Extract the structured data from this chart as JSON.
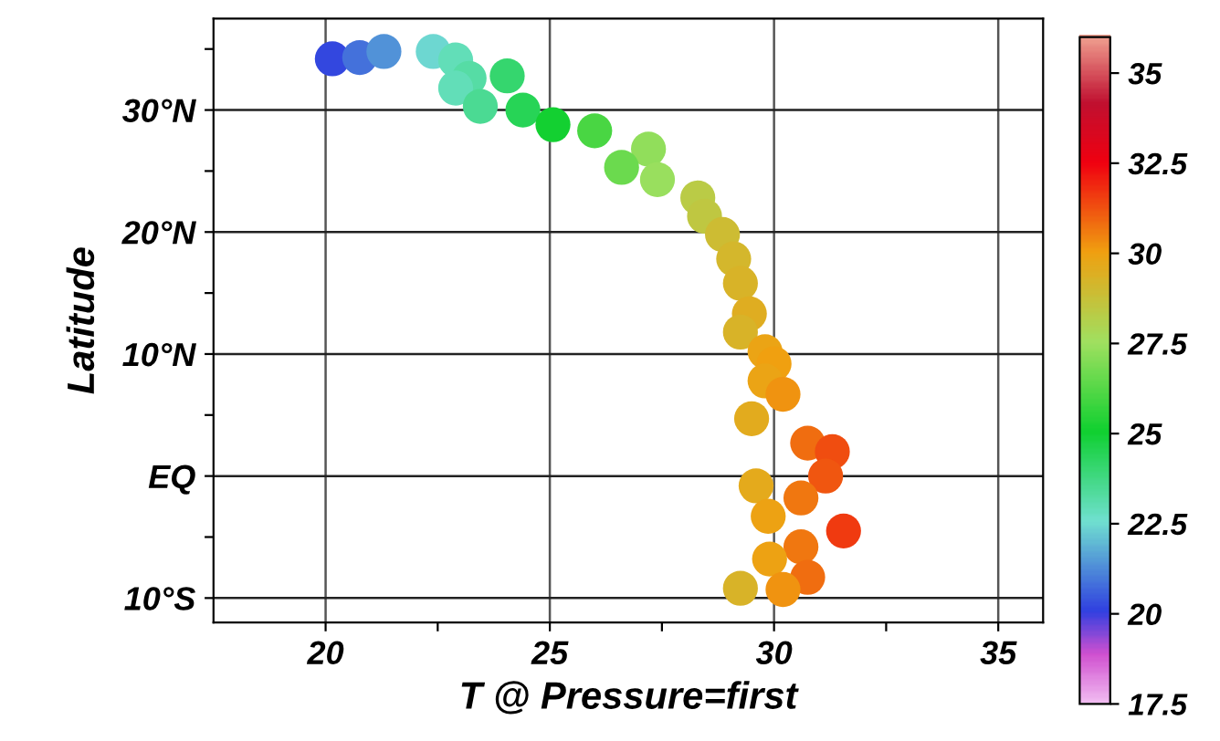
{
  "chart_data": {
    "type": "scatter",
    "xlabel": "T @ Pressure=first",
    "ylabel": "Latitude",
    "xlim": [
      17.5,
      36
    ],
    "ylim": [
      -12,
      37.5
    ],
    "xticks": [
      20,
      {
        "value": 22.5,
        "label": null
      },
      25,
      {
        "value": 27.5,
        "label": null
      },
      30,
      {
        "value": 32.5,
        "label": null
      },
      35
    ],
    "yticks": [
      {
        "value": -10,
        "label": "10°S"
      },
      {
        "value": -5,
        "label": null
      },
      {
        "value": 0,
        "label": "EQ"
      },
      {
        "value": 5,
        "label": null
      },
      {
        "value": 10,
        "label": "10°N"
      },
      {
        "value": 15,
        "label": null
      },
      {
        "value": 20,
        "label": "20°N"
      },
      {
        "value": 25,
        "label": null
      },
      {
        "value": 30,
        "label": "30°N"
      },
      {
        "value": 35,
        "label": null
      }
    ],
    "x": [
      20.15,
      20.76,
      21.3,
      22.4,
      22.9,
      24.05,
      23.2,
      22.9,
      23.45,
      24.4,
      25.07,
      26.0,
      27.2,
      26.6,
      27.4,
      28.3,
      28.45,
      28.85,
      29.1,
      29.25,
      29.45,
      29.25,
      29.8,
      30.0,
      29.8,
      30.2,
      29.5,
      30.75,
      31.3,
      31.15,
      29.6,
      30.6,
      29.87,
      31.55,
      30.6,
      29.9,
      30.75,
      29.25,
      30.2
    ],
    "values": [
      34.2,
      34.3,
      34.8,
      34.8,
      34.1,
      32.8,
      32.6,
      31.8,
      30.3,
      30.0,
      28.8,
      28.3,
      26.8,
      25.3,
      24.3,
      22.8,
      21.3,
      19.8,
      17.8,
      15.8,
      13.3,
      11.8,
      10.2,
      9.2,
      7.8,
      6.7,
      4.7,
      2.7,
      2.0,
      0.0,
      -0.8,
      -1.8,
      -3.3,
      -4.5,
      -5.8,
      -6.8,
      -8.3,
      -9.2,
      -9.3
    ],
    "cvalues": [
      20.15,
      20.76,
      21.3,
      22.4,
      22.9,
      24.05,
      23.2,
      22.9,
      23.45,
      24.4,
      25.07,
      26.0,
      27.2,
      26.6,
      27.4,
      28.3,
      28.45,
      28.85,
      29.1,
      29.25,
      29.45,
      29.25,
      29.8,
      30.0,
      29.8,
      30.2,
      29.5,
      30.75,
      31.3,
      31.15,
      29.6,
      30.6,
      29.87,
      31.55,
      30.6,
      29.9,
      30.75,
      29.25,
      30.2
    ],
    "clim": [
      17.5,
      36
    ],
    "cticks": [
      17.5,
      20,
      22.5,
      25,
      27.5,
      30,
      32.5,
      35
    ],
    "marker": "circle",
    "grid": true
  }
}
